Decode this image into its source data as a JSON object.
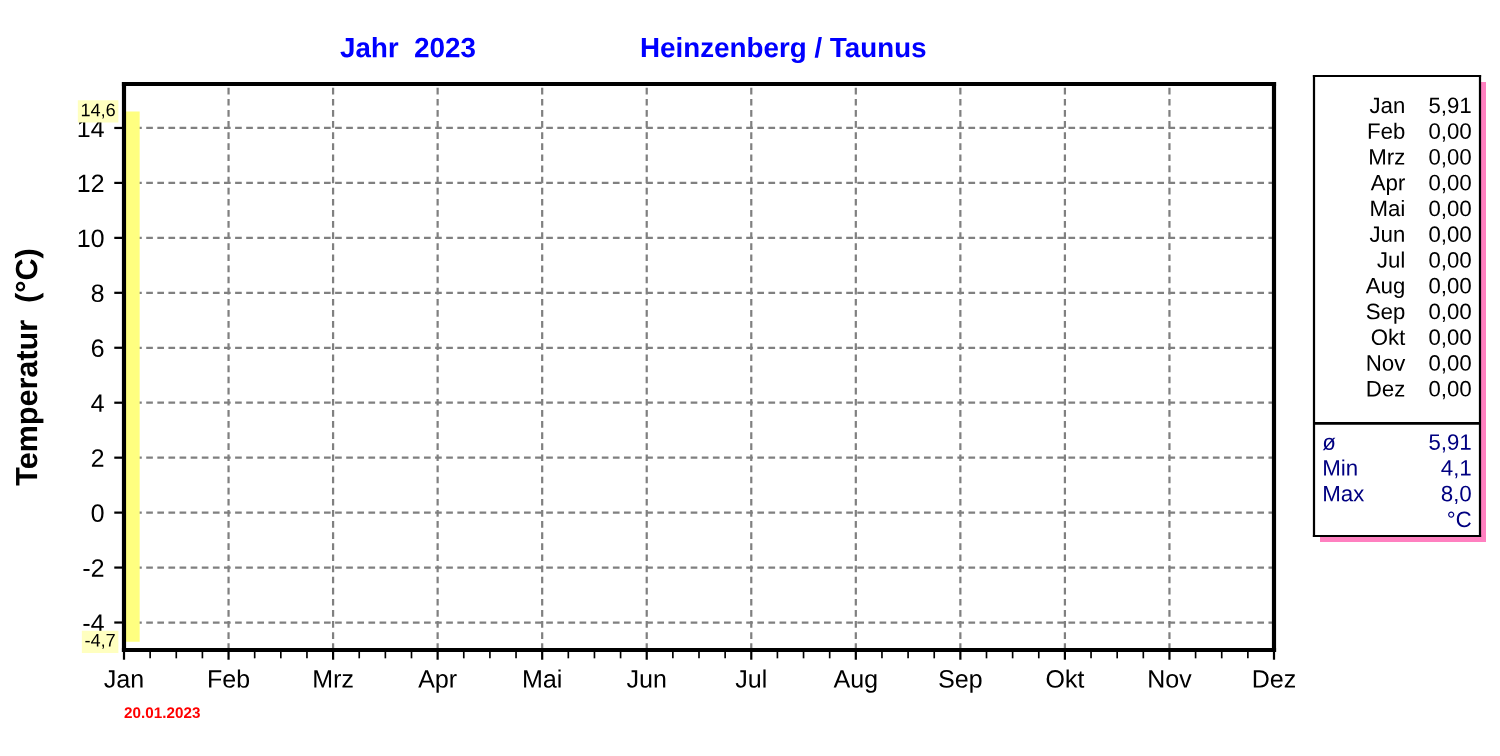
{
  "chart_data": [
    {
      "type": "bar",
      "title": "Jahr  2023",
      "subtitle": "Heinzenberg / Taunus",
      "ylabel": "Temperatur  (°C)",
      "categories": [
        "Jan",
        "Feb",
        "Mrz",
        "Apr",
        "Mai",
        "Jun",
        "Jul",
        "Aug",
        "Sep",
        "Okt",
        "Nov",
        "Dez"
      ],
      "values": [
        19.3,
        null,
        null,
        null,
        null,
        null,
        null,
        null,
        null,
        null,
        null,
        null
      ],
      "base": [
        -4.7,
        null,
        null,
        null,
        null,
        null,
        null,
        null,
        null,
        null,
        null,
        null
      ],
      "color": "#ffff80",
      "ylim": [
        -5,
        15.6
      ],
      "yticks": [
        -4,
        -2,
        0,
        2,
        4,
        6,
        8,
        10,
        12,
        14
      ],
      "grid": true,
      "annotations": [
        {
          "text": "14,6",
          "x": "Jan",
          "y": 14.6
        },
        {
          "text": "-4,7",
          "x": "Jan",
          "y": -4.7
        },
        "20.01.2023"
      ]
    },
    {
      "type": "other",
      "categories": [
        "Jan",
        "Feb",
        "Mrz",
        "Apr",
        "Mai",
        "Jun",
        "Jul",
        "Aug",
        "Sep",
        "Okt",
        "Nov",
        "Dez"
      ],
      "value_labels": [
        "5,91",
        "0,00",
        "0,00",
        "0,00",
        "0,00",
        "0,00",
        "0,00",
        "0,00",
        "0,00",
        "0,00",
        "0,00",
        "0,00"
      ],
      "annotations": [
        "ø",
        "5,91",
        "Min",
        "4,1",
        "Max",
        "8,0",
        "°C"
      ]
    }
  ]
}
